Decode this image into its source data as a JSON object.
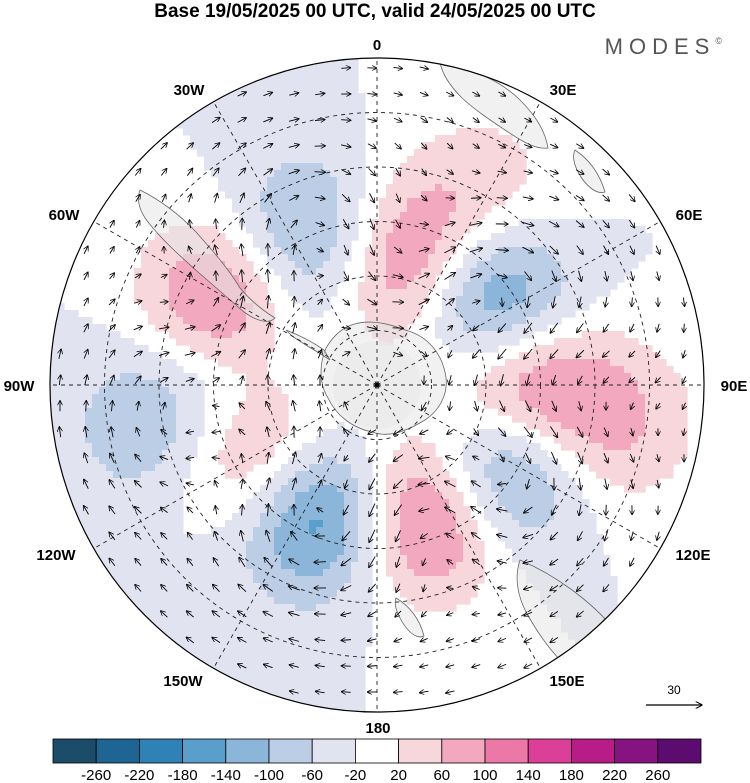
{
  "title": "Base 19/05/2025 00 UTC, valid 24/05/2025 00 UTC",
  "logo": {
    "text": "MODES",
    "mark": "©"
  },
  "longitude_labels": {
    "lon_0": "0",
    "lon_30e": "30E",
    "lon_60e": "60E",
    "lon_90e": "90E",
    "lon_120e": "120E",
    "lon_150e": "150E",
    "lon_180": "180",
    "lon_150w": "150W",
    "lon_120w": "120W",
    "lon_90w": "90W",
    "lon_60w": "60W",
    "lon_30w": "30W"
  },
  "reference_vector": {
    "value": "30"
  },
  "colorbar": {
    "colors": [
      "#1b4d6b",
      "#1f6593",
      "#2f82b5",
      "#5a9fcc",
      "#8cb6d9",
      "#bccde6",
      "#e2e3f1",
      "#ffffff",
      "#f7d6dc",
      "#f2a9bf",
      "#ec78a7",
      "#dc3f97",
      "#b81c88",
      "#871380",
      "#5b0c6e"
    ],
    "tick_labels": [
      "-260",
      "-220",
      "-180",
      "-140",
      "-100",
      "-60",
      "-20",
      "20",
      "60",
      "100",
      "140",
      "180",
      "220",
      "260"
    ]
  },
  "anomaly_centers": [
    {
      "lon": 15,
      "lat": -58,
      "sign": 1,
      "strength": 0.8
    },
    {
      "lon": 55,
      "lat": -55,
      "sign": -1,
      "strength": 1.0
    },
    {
      "lon": 90,
      "lat": -55,
      "sign": 1,
      "strength": 1.0
    },
    {
      "lon": 123,
      "lat": -53,
      "sign": -1,
      "strength": 1.0
    },
    {
      "lon": 158,
      "lat": -55,
      "sign": 1,
      "strength": 0.95
    },
    {
      "lon": -155,
      "lat": -55,
      "sign": -1,
      "strength": 0.9
    },
    {
      "lon": -118,
      "lat": -55,
      "sign": 1,
      "strength": 0.85
    },
    {
      "lon": -88,
      "lat": -55,
      "sign": -1,
      "strength": 0.5
    },
    {
      "lon": -62,
      "lat": -45,
      "sign": 1,
      "strength": 0.7
    },
    {
      "lon": -25,
      "lat": -50,
      "sign": -1,
      "strength": 0.6
    },
    {
      "lon": 30,
      "lat": -28,
      "sign": 1,
      "strength": 0.2
    },
    {
      "lon": 100,
      "lat": -25,
      "sign": 1,
      "strength": 0.3
    },
    {
      "lon": -100,
      "lat": -30,
      "sign": -1,
      "strength": 0.3
    }
  ]
}
